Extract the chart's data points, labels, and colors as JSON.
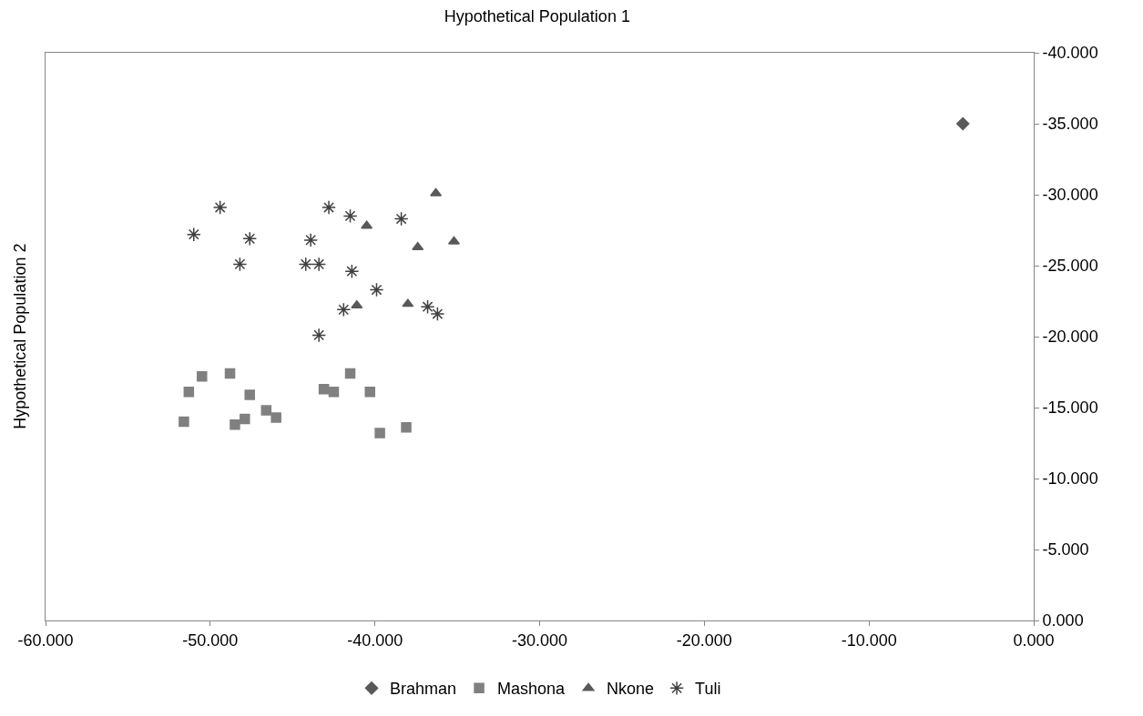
{
  "chart_data": {
    "type": "scatter",
    "title": "Hypothetical Population 1",
    "ylabel": "Hypothetical Population 2",
    "xlim": [
      -60,
      0
    ],
    "xticks": [
      {
        "value": -60,
        "label": "-60.000"
      },
      {
        "value": -50,
        "label": "-50.000"
      },
      {
        "value": -40,
        "label": "-40.000"
      },
      {
        "value": -30,
        "label": "-30.000"
      },
      {
        "value": -20,
        "label": "-20.000"
      },
      {
        "value": -10,
        "label": "-10.000"
      },
      {
        "value": 0,
        "label": "0.000"
      }
    ],
    "ylim": [
      0,
      -40
    ],
    "yticks": [
      {
        "value": 0,
        "label": "0.000"
      },
      {
        "value": -5,
        "label": "-5.000"
      },
      {
        "value": -10,
        "label": "-10.000"
      },
      {
        "value": -15,
        "label": "-15.000"
      },
      {
        "value": -20,
        "label": "-20.000"
      },
      {
        "value": -25,
        "label": "-25.000"
      },
      {
        "value": -30,
        "label": "-30.000"
      },
      {
        "value": -35,
        "label": "-35.000"
      },
      {
        "value": -40,
        "label": "-40.000"
      }
    ],
    "legend": "bottom",
    "series": [
      {
        "name": "Brahman",
        "color": "#595959",
        "marker": "diamond",
        "x": [
          -4.3
        ],
        "values": [
          -35.0
        ]
      },
      {
        "name": "Mashona",
        "color": "#808080",
        "marker": "square",
        "x": [
          -51.6,
          -51.3,
          -50.5,
          -48.8,
          -47.6,
          -48.5,
          -47.9,
          -46.6,
          -46.0,
          -43.1,
          -42.5,
          -41.5,
          -40.3,
          -39.7,
          -38.1
        ],
        "values": [
          -14.0,
          -16.1,
          -17.2,
          -17.4,
          -15.9,
          -13.8,
          -14.2,
          -14.8,
          -14.3,
          -16.3,
          -16.1,
          -17.4,
          -16.1,
          -13.2,
          -13.6
        ]
      },
      {
        "name": "Nkone",
        "color": "#595959",
        "marker": "triangle",
        "x": [
          -36.3,
          -35.2,
          -37.4,
          -40.5,
          -41.1,
          -38.0
        ],
        "values": [
          -30.1,
          -26.7,
          -26.3,
          -27.8,
          -22.2,
          -22.3
        ]
      },
      {
        "name": "Tuli",
        "color": "#404040",
        "marker": "cross",
        "x": [
          -51.0,
          -49.4,
          -47.6,
          -48.2,
          -42.8,
          -41.5,
          -38.4,
          -43.9,
          -44.2,
          -43.4,
          -41.4,
          -39.9,
          -41.9,
          -43.4,
          -36.8,
          -36.2
        ],
        "values": [
          -27.2,
          -29.1,
          -26.9,
          -25.1,
          -29.1,
          -28.5,
          -28.3,
          -26.8,
          -25.1,
          -25.1,
          -24.6,
          -23.3,
          -21.9,
          -20.1,
          -22.1,
          -21.6
        ]
      }
    ]
  }
}
